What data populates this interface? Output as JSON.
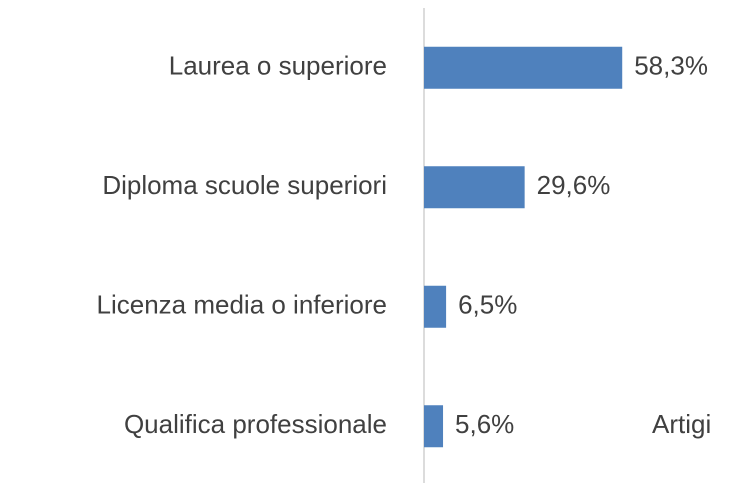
{
  "chart_data": {
    "type": "bar",
    "orientation": "horizontal",
    "categories": [
      "Laurea o superiore",
      "Diploma scuole superiori",
      "Licenza media o inferiore",
      "Qualifica professionale"
    ],
    "values": [
      58.3,
      29.6,
      6.5,
      5.6
    ],
    "value_labels": [
      "58,3%",
      "29,6%",
      "6,5%",
      "5,6%"
    ],
    "color": "#4f81bd",
    "annotation": "Artigi"
  }
}
